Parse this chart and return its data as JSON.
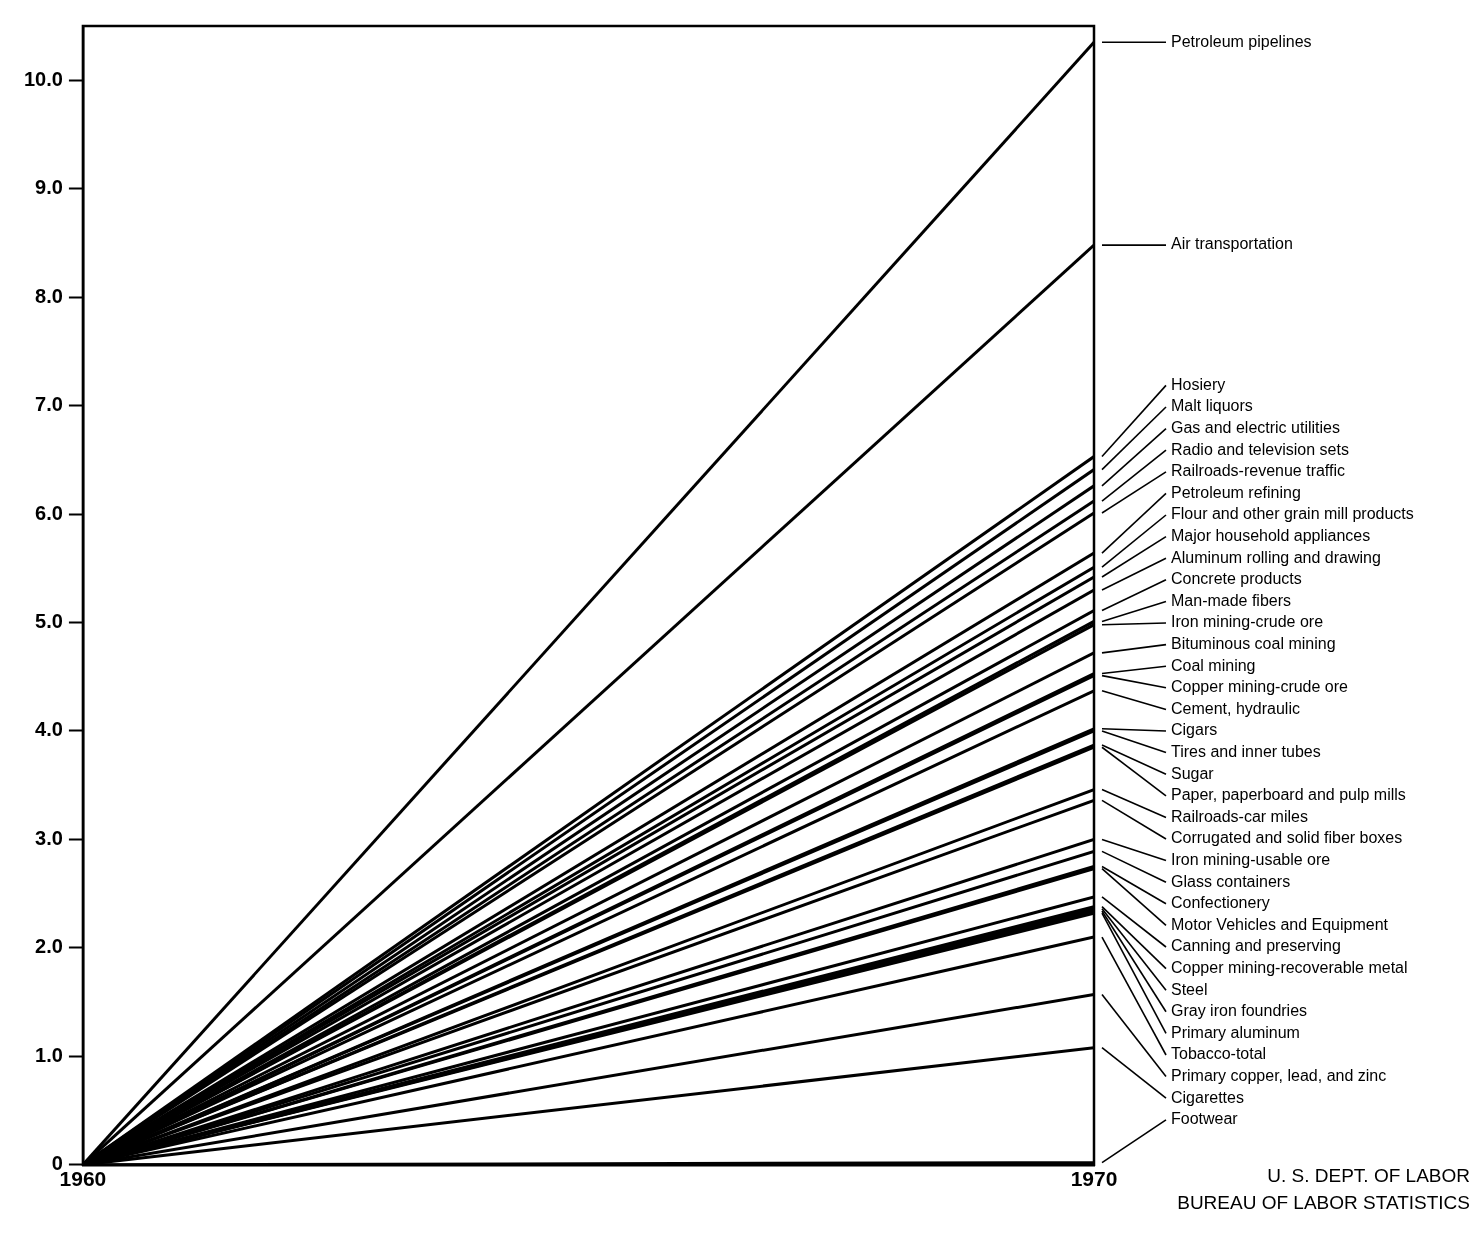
{
  "chart_data": {
    "type": "line",
    "x": [
      1960,
      1970
    ],
    "xlim": [
      1960,
      1970
    ],
    "xticks": [
      1960,
      1970
    ],
    "ylim": [
      0,
      10.5
    ],
    "yticks": [
      {
        "value": 0,
        "label": "0"
      },
      {
        "value": 1,
        "label": "1.0"
      },
      {
        "value": 2,
        "label": "2.0"
      },
      {
        "value": 3,
        "label": "3.0"
      },
      {
        "value": 4,
        "label": "4.0"
      },
      {
        "value": 5,
        "label": "5.0"
      },
      {
        "value": 6,
        "label": "6.0"
      },
      {
        "value": 7,
        "label": "7.0"
      },
      {
        "value": 8,
        "label": "8.0"
      },
      {
        "value": 9,
        "label": "9.0"
      },
      {
        "value": 10,
        "label": "10.0"
      }
    ],
    "grid": false,
    "legend": "right",
    "marker": "none",
    "line_style": "solid",
    "annotations": [
      "U. S. DEPT. OF LABOR",
      "BUREAU OF LABOR STATISTICS"
    ],
    "series": [
      {
        "name": "Petroleum pipelines",
        "color": "#000000",
        "values": [
          0,
          10.35
        ]
      },
      {
        "name": "Air transportation",
        "color": "#000000",
        "values": [
          0,
          8.48
        ]
      },
      {
        "name": "Hosiery",
        "color": "#000000",
        "values": [
          0,
          6.53
        ]
      },
      {
        "name": "Malt liquors",
        "color": "#000000",
        "values": [
          0,
          6.41
        ]
      },
      {
        "name": "Gas and electric utilities",
        "color": "#000000",
        "values": [
          0,
          6.26
        ]
      },
      {
        "name": "Radio and television sets",
        "color": "#000000",
        "values": [
          0,
          6.12
        ]
      },
      {
        "name": "Railroads-revenue traffic",
        "color": "#000000",
        "values": [
          0,
          6.01
        ]
      },
      {
        "name": "Petroleum refining",
        "color": "#000000",
        "values": [
          0,
          5.64
        ]
      },
      {
        "name": "Flour and other grain mill products",
        "color": "#000000",
        "values": [
          0,
          5.51
        ]
      },
      {
        "name": "Major household appliances",
        "color": "#000000",
        "values": [
          0,
          5.42
        ]
      },
      {
        "name": "Aluminum rolling and drawing",
        "color": "#000000",
        "values": [
          0,
          5.3
        ]
      },
      {
        "name": "Concrete products",
        "color": "#000000",
        "values": [
          0,
          5.11
        ]
      },
      {
        "name": "Man-made fibers",
        "color": "#000000",
        "values": [
          0,
          5.01
        ]
      },
      {
        "name": "Iron mining-crude ore",
        "color": "#000000",
        "values": [
          0,
          4.98
        ]
      },
      {
        "name": "Bituminous coal mining",
        "color": "#000000",
        "values": [
          0,
          4.72
        ]
      },
      {
        "name": "Coal mining",
        "color": "#000000",
        "values": [
          0,
          4.53
        ]
      },
      {
        "name": "Copper mining-crude ore",
        "color": "#000000",
        "values": [
          0,
          4.51
        ]
      },
      {
        "name": "Cement, hydraulic",
        "color": "#000000",
        "values": [
          0,
          4.37
        ]
      },
      {
        "name": "Cigars",
        "color": "#000000",
        "values": [
          0,
          4.02
        ]
      },
      {
        "name": "Tires and inner tubes",
        "color": "#000000",
        "values": [
          0,
          4.0
        ]
      },
      {
        "name": "Sugar",
        "color": "#000000",
        "values": [
          0,
          3.87
        ]
      },
      {
        "name": "Paper, paperboard and pulp mills",
        "color": "#000000",
        "values": [
          0,
          3.85
        ]
      },
      {
        "name": "Railroads-car miles",
        "color": "#000000",
        "values": [
          0,
          3.46
        ]
      },
      {
        "name": "Corrugated and solid fiber boxes",
        "color": "#000000",
        "values": [
          0,
          3.36
        ]
      },
      {
        "name": "Iron mining-usable ore",
        "color": "#000000",
        "values": [
          0,
          3.0
        ]
      },
      {
        "name": "Glass containers",
        "color": "#000000",
        "values": [
          0,
          2.89
        ]
      },
      {
        "name": "Confectionery",
        "color": "#000000",
        "values": [
          0,
          2.75
        ]
      },
      {
        "name": "Motor Vehicles and Equipment",
        "color": "#000000",
        "values": [
          0,
          2.73
        ]
      },
      {
        "name": "Canning and preserving",
        "color": "#000000",
        "values": [
          0,
          2.47
        ]
      },
      {
        "name": "Copper mining-recoverable metal",
        "color": "#000000",
        "values": [
          0,
          2.38
        ]
      },
      {
        "name": "Steel",
        "color": "#000000",
        "values": [
          0,
          2.36
        ]
      },
      {
        "name": "Gray iron foundries",
        "color": "#000000",
        "values": [
          0,
          2.34
        ]
      },
      {
        "name": "Primary aluminum",
        "color": "#000000",
        "values": [
          0,
          2.32
        ]
      },
      {
        "name": "Tobacco-total",
        "color": "#000000",
        "values": [
          0,
          2.1
        ]
      },
      {
        "name": "Primary copper, lead, and zinc",
        "color": "#000000",
        "values": [
          0,
          1.57
        ]
      },
      {
        "name": "Cigarettes",
        "color": "#000000",
        "values": [
          0,
          1.08
        ]
      },
      {
        "name": "Footwear",
        "color": "#000000",
        "values": [
          0,
          0.02
        ]
      }
    ]
  }
}
